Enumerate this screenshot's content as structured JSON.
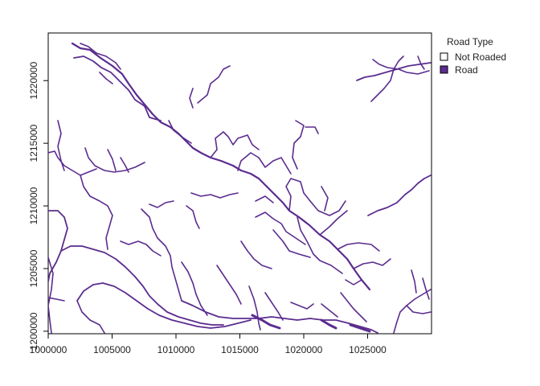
{
  "map": {
    "road_color": "#5b2c8f",
    "x_ticks": [
      "1000000",
      "1005000",
      "1010000",
      "1015000",
      "1020000",
      "1025000"
    ],
    "y_ticks": [
      "1200000",
      "1205000",
      "1210000",
      "1215000",
      "1220000"
    ],
    "x_range": [
      1000000,
      1030000
    ],
    "y_range": [
      1199800,
      1223800
    ],
    "legend": {
      "title": "Road Type",
      "items": [
        {
          "label": "Not Roaded",
          "color": "#ffffff"
        },
        {
          "label": "Road",
          "color": "#5b2c8f"
        }
      ]
    }
  }
}
